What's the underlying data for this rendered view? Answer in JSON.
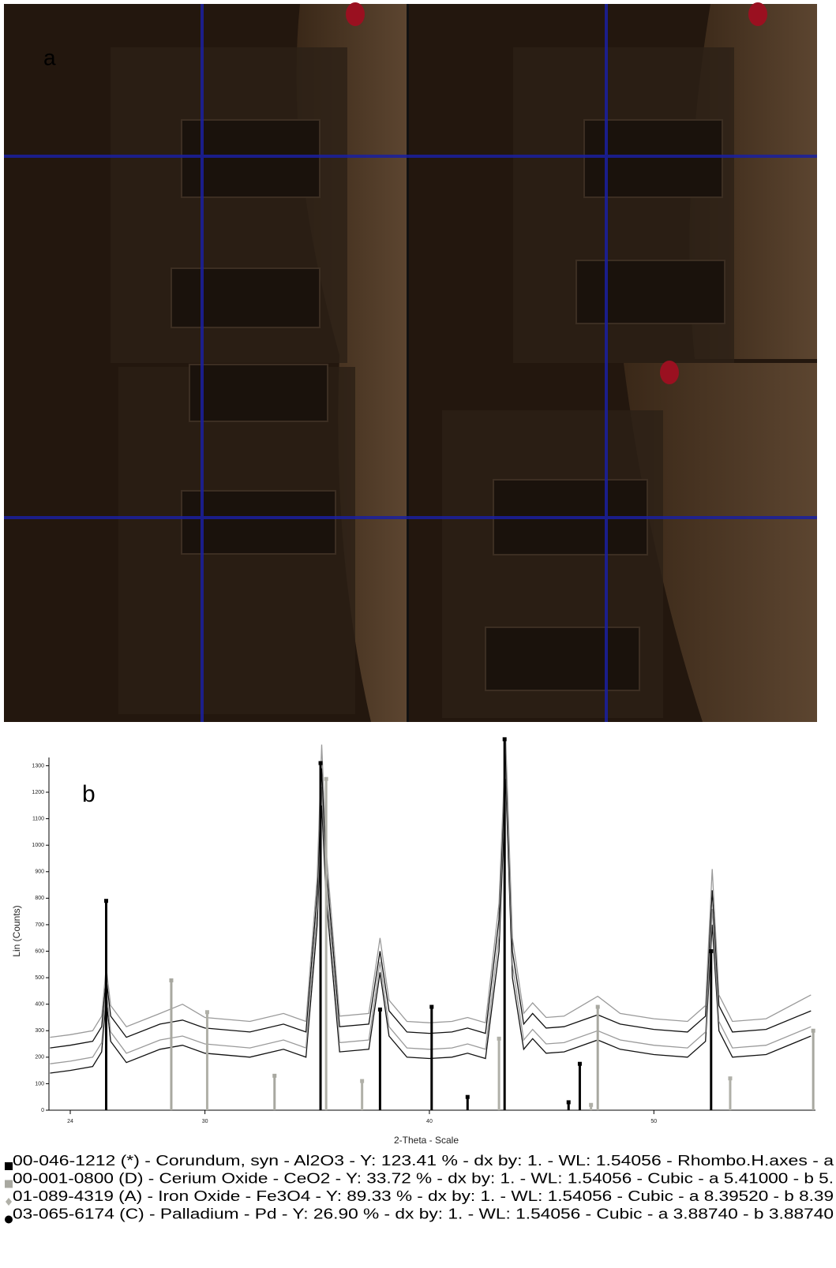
{
  "panel_a": {
    "label": "a"
  },
  "chart_data": {
    "type": "line",
    "label": "b",
    "xlabel": "2-Theta - Scale",
    "ylabel": "Lin (Counts)",
    "xlim": [
      23.05,
      57.2
    ],
    "ylim": [
      0,
      1340
    ],
    "xticks": [
      24,
      30,
      40,
      50
    ],
    "yticks": [
      0,
      100,
      200,
      300,
      400,
      500,
      600,
      700,
      800,
      900,
      1000,
      1100,
      1200,
      1300
    ],
    "x": [
      23.1,
      24,
      25,
      25.4,
      25.6,
      25.8,
      26.5,
      28,
      29,
      30,
      32,
      33.5,
      34.5,
      35.0,
      35.2,
      35.4,
      36,
      37.3,
      37.8,
      38.2,
      39,
      40,
      41,
      41.7,
      42.5,
      43.1,
      43.4,
      43.7,
      44.2,
      44.6,
      45.2,
      46,
      47.5,
      48.5,
      50,
      51.5,
      52.3,
      52.6,
      52.9,
      53.5,
      55,
      57
    ],
    "series": [
      {
        "color": "#111111",
        "values": [
          140,
          150,
          165,
          220,
          420,
          260,
          180,
          230,
          245,
          215,
          200,
          230,
          200,
          700,
          1150,
          800,
          220,
          230,
          520,
          280,
          200,
          195,
          200,
          215,
          195,
          600,
          1250,
          500,
          230,
          270,
          215,
          220,
          265,
          230,
          210,
          200,
          260,
          700,
          300,
          200,
          210,
          280
        ]
      },
      {
        "color": "#9a9a9a",
        "values": [
          175,
          185,
          200,
          255,
          460,
          295,
          215,
          265,
          280,
          250,
          235,
          265,
          235,
          760,
          1220,
          860,
          255,
          265,
          560,
          315,
          235,
          230,
          235,
          250,
          230,
          660,
          1320,
          550,
          265,
          305,
          250,
          255,
          300,
          265,
          245,
          235,
          295,
          760,
          335,
          235,
          245,
          315
        ]
      },
      {
        "color": "#111111",
        "values": [
          235,
          245,
          260,
          315,
          500,
          355,
          275,
          325,
          340,
          310,
          295,
          325,
          295,
          820,
          1290,
          920,
          315,
          325,
          600,
          375,
          295,
          290,
          295,
          310,
          290,
          720,
          1360,
          600,
          325,
          365,
          310,
          315,
          360,
          325,
          305,
          295,
          355,
          830,
          395,
          295,
          305,
          375
        ]
      },
      {
        "color": "#9a9a9a",
        "values": [
          275,
          285,
          300,
          355,
          540,
          395,
          315,
          365,
          400,
          350,
          335,
          365,
          335,
          880,
          1380,
          980,
          355,
          365,
          650,
          415,
          335,
          330,
          335,
          350,
          330,
          780,
          1400,
          650,
          365,
          405,
          350,
          355,
          430,
          365,
          345,
          335,
          395,
          910,
          435,
          335,
          345,
          435
        ]
      }
    ],
    "references": [
      {
        "name": "00-046-1212 (*) - Corundum, syn - Al2O3 - Y: 123.41 % - dx by: 1. - WL: 1.54056 - Rhombo.H.axes - a",
        "color": "#000000",
        "marker": "square",
        "x": [
          25.6,
          35.15,
          37.8,
          41.7,
          43.35,
          46.2,
          52.55
        ],
        "values": [
          790,
          1310,
          380,
          50,
          1400,
          30,
          600
        ]
      },
      {
        "name": "00-001-0800 (D) - Cerium Oxide - CeO2 - Y: 33.72 % - dx by: 1. - WL: 1.54056 - Cubic - a 5.41000 - b 5.",
        "color": "#a8a8a0",
        "marker": "square",
        "x": [
          28.5,
          33.1,
          47.5,
          57.1
        ],
        "values": [
          490,
          130,
          390,
          300
        ]
      },
      {
        "name": "01-089-4319 (A) - Iron Oxide - Fe3O4 - Y: 89.33 % - dx by: 1. - WL: 1.54056 - Cubic - a 8.39520 - b 8.39",
        "color": "#b0b0a8",
        "marker": "diamond",
        "x": [
          30.1,
          35.4,
          37.0,
          43.1,
          47.2,
          53.4
        ],
        "values": [
          370,
          1250,
          110,
          270,
          20,
          120
        ]
      },
      {
        "name": "03-065-6174 (C) - Palladium - Pd - Y: 26.90 % - dx by: 1. - WL: 1.54056 - Cubic - a 3.88740 - b 3.88740",
        "color": "#000000",
        "marker": "circle",
        "x": [
          40.1,
          46.7
        ],
        "values": [
          390,
          175
        ]
      }
    ]
  }
}
